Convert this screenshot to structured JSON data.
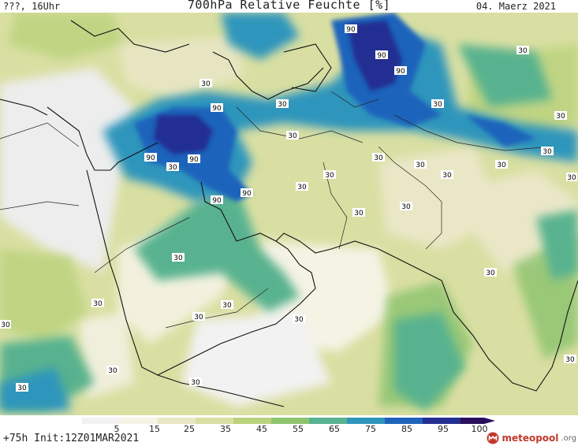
{
  "header": {
    "left_label": "???, 16Uhr",
    "title": "700hPa Relative Feuchte [%]",
    "date": "04. Maerz 2021"
  },
  "footer": {
    "run_label": "+75h Init:12Z01MAR2021",
    "brand_name": "meteopool",
    "brand_tld": ".org",
    "brand_color": "#c0392b"
  },
  "legend": {
    "ticks": [
      "5",
      "15",
      "25",
      "35",
      "45",
      "55",
      "65",
      "75",
      "85",
      "95",
      "100"
    ],
    "colors": [
      "#f2f2f2",
      "#f5f3e4",
      "#eae7c7",
      "#d9dfa2",
      "#bcd37e",
      "#8fc46f",
      "#58b28f",
      "#2f95bc",
      "#1f63bb",
      "#232f92",
      "#2a0f5c"
    ]
  },
  "map": {
    "contour_labels": [
      "90",
      "90",
      "90",
      "30",
      "30",
      "90",
      "90",
      "90",
      "30",
      "30",
      "90",
      "30",
      "90",
      "30",
      "30",
      "30",
      "30",
      "30",
      "30",
      "30",
      "30",
      "30",
      "30",
      "30",
      "30",
      "30",
      "30",
      "30",
      "30",
      "30",
      "30",
      "30",
      "30",
      "30",
      "30",
      "30"
    ]
  }
}
